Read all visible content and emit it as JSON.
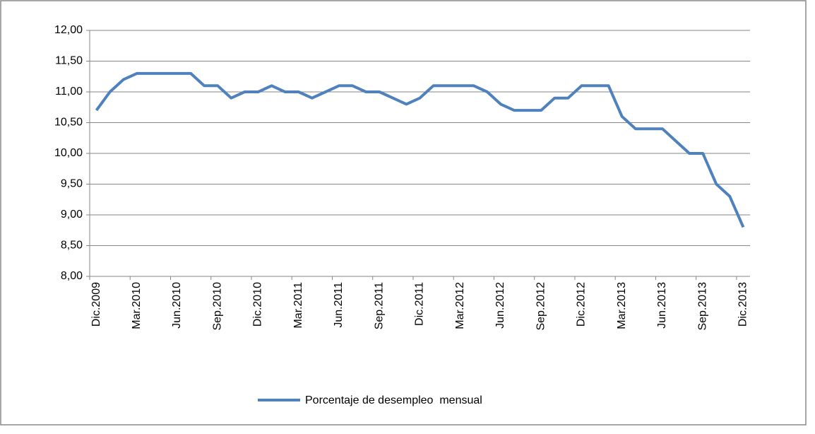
{
  "chart_data": {
    "type": "line",
    "categories": [
      "Dic.2009",
      null,
      null,
      "Mar.2010",
      null,
      null,
      "Jun.2010",
      null,
      null,
      "Sep.2010",
      null,
      null,
      "Dic.2010",
      null,
      null,
      "Mar.2011",
      null,
      null,
      "Jun.2011",
      null,
      null,
      "Sep.2011",
      null,
      null,
      "Dic.2011",
      null,
      null,
      "Mar.2012",
      null,
      null,
      "Jun.2012",
      null,
      null,
      "Sep.2012",
      null,
      null,
      "Dic.2012",
      null,
      null,
      "Mar.2013",
      null,
      null,
      "Jun.2013",
      null,
      null,
      "Sep.2013",
      null,
      null,
      "Dic.2013"
    ],
    "series": [
      {
        "name": "Porcentaje de desempleo  mensual",
        "color": "#4f81bd",
        "values": [
          10.7,
          11.0,
          11.2,
          11.3,
          11.3,
          11.3,
          11.3,
          11.3,
          11.1,
          11.1,
          10.9,
          11.0,
          11.0,
          11.1,
          11.0,
          11.0,
          10.9,
          11.0,
          11.1,
          11.1,
          11.0,
          11.0,
          10.9,
          10.8,
          10.9,
          11.1,
          11.1,
          11.1,
          11.1,
          11.0,
          10.8,
          10.7,
          10.7,
          10.7,
          10.9,
          10.9,
          11.1,
          11.1,
          11.1,
          10.6,
          10.4,
          10.4,
          10.4,
          10.2,
          10.0,
          10.0,
          9.5,
          9.3,
          8.8
        ]
      }
    ],
    "ylim": [
      8,
      12
    ],
    "yticks": [
      {
        "value": 8,
        "label": "8,00"
      },
      {
        "value": 8.5,
        "label": "8,50"
      },
      {
        "value": 9,
        "label": "9,00"
      },
      {
        "value": 9.5,
        "label": "9,50"
      },
      {
        "value": 10,
        "label": "10,00"
      },
      {
        "value": 10.5,
        "label": "10,50"
      },
      {
        "value": 11,
        "label": "11,00"
      },
      {
        "value": 11.5,
        "label": "11,50"
      },
      {
        "value": 12,
        "label": "12,00"
      }
    ],
    "grid": true,
    "legend": "bottom"
  }
}
